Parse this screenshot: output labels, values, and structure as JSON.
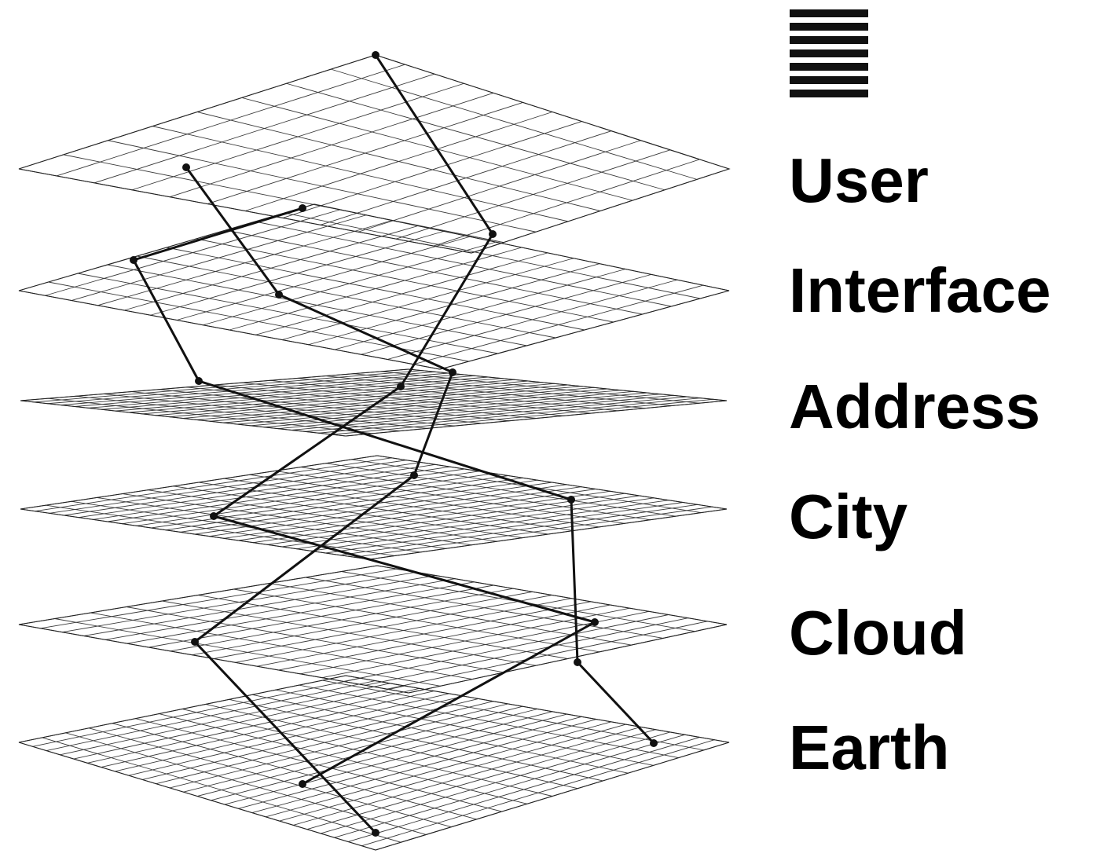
{
  "logo": {
    "name": "stacked-bars-icon",
    "bar_count": 7,
    "color": "#111111"
  },
  "labels": [
    "User",
    "Interface",
    "Address",
    "City",
    "Cloud",
    "Earth"
  ],
  "layers": [
    {
      "name": "User",
      "grid": [
        12,
        8
      ]
    },
    {
      "name": "Interface",
      "grid": [
        16,
        10
      ]
    },
    {
      "name": "Address",
      "grid": [
        24,
        14
      ]
    },
    {
      "name": "City",
      "grid": [
        24,
        14
      ]
    },
    {
      "name": "Cloud",
      "grid": [
        18,
        10
      ]
    },
    {
      "name": "Earth",
      "grid": [
        26,
        14
      ]
    }
  ],
  "connections": {
    "path1": [
      "User",
      "Interface",
      "Address",
      "City",
      "Cloud",
      "Earth"
    ],
    "path2": [
      "User",
      "Interface",
      "Address",
      "City",
      "Cloud",
      "Earth"
    ],
    "path3": [
      "Interface",
      "Address",
      "City",
      "Cloud",
      "Earth"
    ]
  },
  "colors": {
    "ink": "#111111",
    "grid": "#3a3a3a",
    "background": "#ffffff"
  }
}
